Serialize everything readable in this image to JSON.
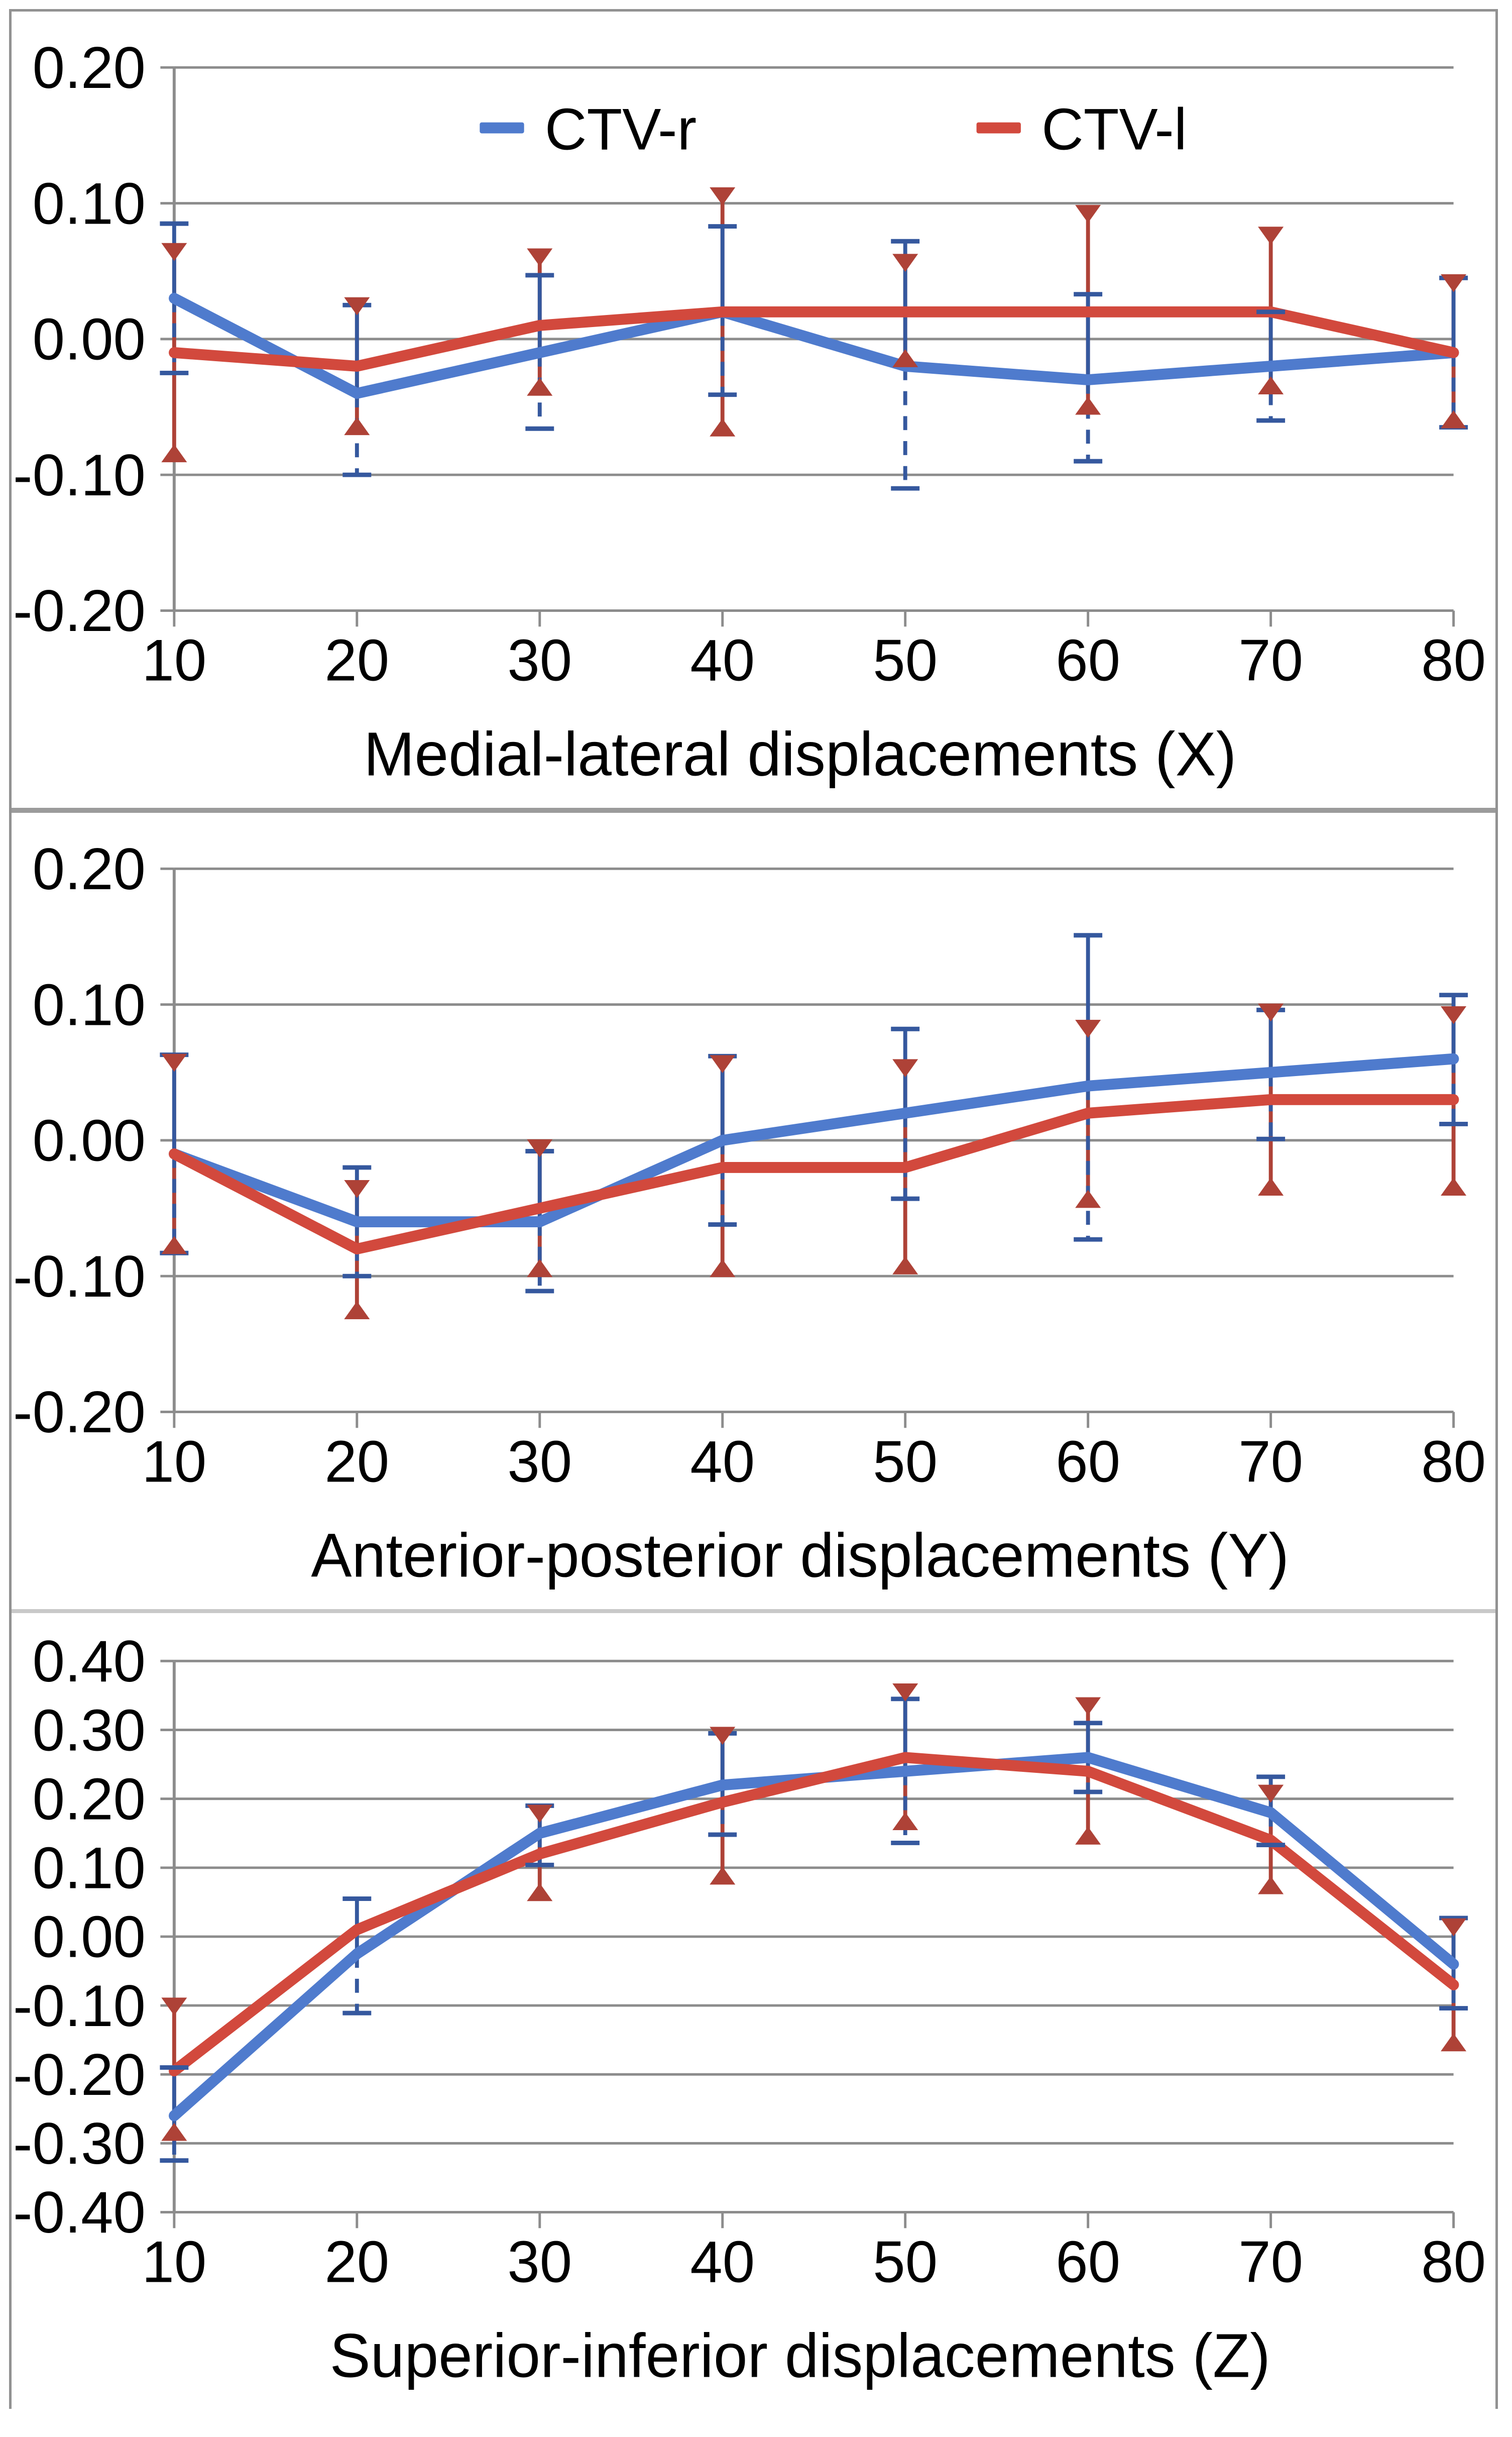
{
  "figure": {
    "description": "Three stacked line charts of CTV displacements with error bars",
    "accent_blue": "#4f7bcd",
    "accent_red": "#d2493d",
    "errbar_blue": "#35589e",
    "errbar_red": "#ae4237",
    "grid_color": "#8c8c8c",
    "legend": {
      "entries": [
        {
          "label": "CTV-r",
          "color": "#4f7bcd"
        },
        {
          "label": "CTV-l",
          "color": "#d2493d"
        }
      ]
    }
  },
  "chart_data": [
    {
      "type": "line",
      "title": "Medial-lateral displacements (X)",
      "x_categories": [
        "10",
        "20",
        "30",
        "40",
        "50",
        "60",
        "70",
        "80"
      ],
      "ylim": [
        -0.2,
        0.2
      ],
      "ytick_step": 0.1,
      "ytick_labels": [
        "0.20",
        "0.10",
        "0.00",
        "-0.10",
        "-0.20"
      ],
      "grid": true,
      "legend_visible": true,
      "series": [
        {
          "name": "CTV-r",
          "values": [
            0.03,
            -0.04,
            -0.01,
            0.02,
            -0.02,
            -0.03,
            -0.02,
            -0.01
          ],
          "err_hi": [
            0.085,
            0.025,
            0.047,
            0.083,
            0.072,
            0.033,
            0.02,
            0.045
          ],
          "err_lo": [
            -0.025,
            -0.1,
            -0.066,
            -0.041,
            -0.11,
            -0.09,
            -0.06,
            -0.065
          ]
        },
        {
          "name": "CTV-l",
          "values": [
            -0.01,
            -0.02,
            0.01,
            0.02,
            0.02,
            0.02,
            0.02,
            -0.01
          ],
          "err_hi": [
            0.07,
            0.03,
            0.066,
            0.111,
            0.062,
            0.098,
            0.082,
            0.047
          ],
          "err_lo": [
            -0.09,
            -0.07,
            -0.041,
            -0.071,
            -0.02,
            -0.055,
            -0.04,
            -0.065
          ]
        }
      ]
    },
    {
      "type": "line",
      "title": "Anterior-posterior displacements (Y)",
      "x_categories": [
        "10",
        "20",
        "30",
        "40",
        "50",
        "60",
        "70",
        "80"
      ],
      "ylim": [
        -0.2,
        0.2
      ],
      "ytick_step": 0.1,
      "ytick_labels": [
        "0.20",
        "0.10",
        "0.00",
        "-0.10",
        "-0.20"
      ],
      "grid": true,
      "legend_visible": false,
      "series": [
        {
          "name": "CTV-r",
          "values": [
            -0.01,
            -0.06,
            -0.06,
            0.0,
            0.02,
            0.04,
            0.05,
            0.06
          ],
          "err_hi": [
            0.063,
            -0.02,
            -0.008,
            0.062,
            0.082,
            0.151,
            0.096,
            0.107
          ],
          "err_lo": [
            -0.083,
            -0.1,
            -0.111,
            -0.062,
            -0.043,
            -0.073,
            0.001,
            0.012
          ]
        },
        {
          "name": "CTV-l",
          "values": [
            -0.01,
            -0.08,
            -0.05,
            -0.02,
            -0.02,
            0.02,
            0.03,
            0.03
          ],
          "err_hi": [
            0.063,
            -0.03,
            0.0,
            0.062,
            0.059,
            0.088,
            0.1,
            0.098
          ],
          "err_lo": [
            -0.083,
            -0.131,
            -0.1,
            -0.1,
            -0.098,
            -0.049,
            -0.04,
            -0.04
          ]
        }
      ]
    },
    {
      "type": "line",
      "title": "Superior-inferior displacements (Z)",
      "x_categories": [
        "10",
        "20",
        "30",
        "40",
        "50",
        "60",
        "70",
        "80"
      ],
      "ylim": [
        -0.4,
        0.4
      ],
      "ytick_step": 0.1,
      "ytick_labels": [
        "0.40",
        "0.30",
        "0.20",
        "0.10",
        "0.00",
        "-0.10",
        "-0.20",
        "-0.30",
        "-0.40"
      ],
      "grid": true,
      "legend_visible": false,
      "series": [
        {
          "name": "CTV-r",
          "values": [
            -0.26,
            -0.025,
            0.15,
            0.22,
            0.24,
            0.26,
            0.18,
            -0.04
          ],
          "err_hi": [
            -0.19,
            0.055,
            0.19,
            0.295,
            0.345,
            0.31,
            0.232,
            0.027
          ],
          "err_lo": [
            -0.325,
            -0.111,
            0.104,
            0.148,
            0.136,
            0.21,
            0.133,
            -0.104
          ]
        },
        {
          "name": "CTV-l",
          "values": [
            -0.195,
            0.01,
            0.12,
            0.195,
            0.26,
            0.24,
            0.14,
            -0.07
          ],
          "err_hi": [
            -0.09,
            null,
            0.19,
            0.303,
            0.366,
            0.346,
            0.219,
            0.025
          ],
          "err_lo": [
            -0.295,
            null,
            0.053,
            0.077,
            0.156,
            0.135,
            0.063,
            -0.165
          ]
        }
      ]
    }
  ]
}
